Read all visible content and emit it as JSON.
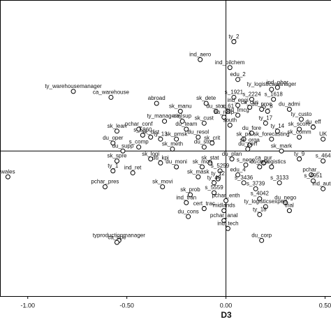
{
  "chart_data": {
    "type": "scatter",
    "x_label": "D3",
    "xlim": [
      -1.14,
      0.53
    ],
    "ylim": [
      -0.73,
      0.76
    ],
    "xticks": [
      {
        "value": -1,
        "label": "-1.00"
      },
      {
        "value": -0.5,
        "label": "-0.50"
      },
      {
        "value": 0,
        "label": "0.00"
      },
      {
        "value": 0.5,
        "label": "0.50"
      }
    ],
    "color": "#000000",
    "points": [
      {
        "label": "ty_2",
        "x": 0.04,
        "y": 0.55
      },
      {
        "label": "ind_aero",
        "x": -0.13,
        "y": 0.46
      },
      {
        "label": "ind_oilchem",
        "x": 0.02,
        "y": 0.42
      },
      {
        "label": "edu_2",
        "x": 0.06,
        "y": 0.36
      },
      {
        "label": "ind_phar",
        "x": 0.26,
        "y": 0.32
      },
      {
        "label": "ty_warehousemanager",
        "x": -0.77,
        "y": 0.3
      },
      {
        "label": "ca_warehouse",
        "x": -0.58,
        "y": 0.27
      },
      {
        "label": "abroad",
        "x": -0.35,
        "y": 0.24
      },
      {
        "label": "s_1921",
        "x": 0.04,
        "y": 0.27
      },
      {
        "label": "s_2224",
        "x": 0.13,
        "y": 0.26
      },
      {
        "label": "s_1618",
        "x": 0.24,
        "y": 0.26
      },
      {
        "label": "ty_logisticsmanager",
        "x": 0.23,
        "y": 0.31
      },
      {
        "label": "sk_dete",
        "x": -0.1,
        "y": 0.24
      },
      {
        "label": "ind_engi",
        "x": 0.06,
        "y": 0.23
      },
      {
        "label": "ca_cus",
        "x": 0.12,
        "y": 0.22
      },
      {
        "label": "du_proc",
        "x": 0.18,
        "y": 0.21
      },
      {
        "label": "du_admi",
        "x": 0.32,
        "y": 0.21
      },
      {
        "label": "ty_custo",
        "x": 0.38,
        "y": 0.16
      },
      {
        "label": "sk_manu",
        "x": -0.23,
        "y": 0.2
      },
      {
        "label": "du_stoc",
        "x": -0.05,
        "y": 0.2
      },
      {
        "label": "s_61",
        "x": 0.01,
        "y": 0.2
      },
      {
        "label": "ind_fmcg",
        "x": 0.06,
        "y": 0.18
      },
      {
        "label": "ty_8",
        "x": 0.21,
        "y": 0.2
      },
      {
        "label": "ty_managerial",
        "x": -0.31,
        "y": 0.15
      },
      {
        "label": "ca_sup",
        "x": -0.22,
        "y": 0.15
      },
      {
        "label": "sk_cust",
        "x": -0.11,
        "y": 0.14
      },
      {
        "label": "du_resp",
        "x": -0.01,
        "y": 0.17
      },
      {
        "label": "south",
        "x": 0.02,
        "y": 0.13
      },
      {
        "label": "ty_17",
        "x": 0.2,
        "y": 0.14
      },
      {
        "label": "ty_14",
        "x": 0.26,
        "y": 0.1
      },
      {
        "label": "sk_score",
        "x": 0.37,
        "y": 0.11
      },
      {
        "label": "pchar_conf",
        "x": -0.44,
        "y": 0.11
      },
      {
        "label": "s_5860",
        "x": -0.42,
        "y": 0.08
      },
      {
        "label": "du_team",
        "x": -0.2,
        "y": 0.11
      },
      {
        "label": "du_fore",
        "x": 0.13,
        "y": 0.09
      },
      {
        "label": "du_eff",
        "x": 0.44,
        "y": 0.12
      },
      {
        "label": "sk_lean",
        "x": -0.55,
        "y": 0.1
      },
      {
        "label": "sk_dist",
        "x": -0.38,
        "y": 0.07
      },
      {
        "label": "ty_13",
        "x": -0.33,
        "y": 0.06
      },
      {
        "label": "sk_pmsk",
        "x": -0.25,
        "y": 0.06
      },
      {
        "label": "du_resol",
        "x": -0.14,
        "y": 0.07
      },
      {
        "label": "sk_po",
        "x": 0.09,
        "y": 0.06
      },
      {
        "label": "sk_forecasting",
        "x": 0.23,
        "y": 0.06
      },
      {
        "label": "sk_comm",
        "x": 0.37,
        "y": 0.07
      },
      {
        "label": "du_oper",
        "x": -0.57,
        "y": 0.04
      },
      {
        "label": "s_comp",
        "x": -0.44,
        "y": 0.02
      },
      {
        "label": "sk_meth",
        "x": -0.27,
        "y": 0.01
      },
      {
        "label": "du_strat",
        "x": -0.11,
        "y": 0.02
      },
      {
        "label": "sk_crit",
        "x": -0.07,
        "y": 0.04
      },
      {
        "label": "sk_orga",
        "x": 0.12,
        "y": 0.03
      },
      {
        "label": "du_perf",
        "x": 0.11,
        "y": 0.01
      },
      {
        "label": "sk_mark",
        "x": 0.28,
        "y": 0.0
      },
      {
        "label": "du_supp",
        "x": -0.52,
        "y": 0.0
      },
      {
        "label": "ty_9",
        "x": 0.37,
        "y": -0.04
      },
      {
        "label": "s_464",
        "x": 0.49,
        "y": -0.05
      },
      {
        "label": "sk_spre",
        "x": -0.55,
        "y": -0.05
      },
      {
        "label": "sk_logi",
        "x": -0.38,
        "y": -0.04
      },
      {
        "label": "du_kpi",
        "x": -0.33,
        "y": -0.06
      },
      {
        "label": "sk_stat",
        "x": -0.08,
        "y": -0.06
      },
      {
        "label": "du_plan",
        "x": 0.03,
        "y": -0.04
      },
      {
        "label": "ca_pur",
        "x": 0.19,
        "y": -0.06
      },
      {
        "label": "ca_logistics",
        "x": 0.23,
        "y": -0.08
      },
      {
        "label": "ty_1",
        "x": -0.57,
        "y": -0.1
      },
      {
        "label": "ind_ret",
        "x": -0.47,
        "y": -0.11
      },
      {
        "label": "du_moni",
        "x": -0.25,
        "y": -0.08
      },
      {
        "label": "sk_moti",
        "x": -0.12,
        "y": -0.08
      },
      {
        "label": "s_5259",
        "x": -0.03,
        "y": -0.1
      },
      {
        "label": "s_nego",
        "x": 0.1,
        "y": -0.07
      },
      {
        "label": "du_rela",
        "x": 0.17,
        "y": -0.08
      },
      {
        "label": "pchar_",
        "x": 0.43,
        "y": -0.12
      },
      {
        "label": "wales",
        "x": -1.1,
        "y": -0.13
      },
      {
        "label": "sk_mask",
        "x": -0.14,
        "y": -0.13
      },
      {
        "label": "s_4951",
        "x": 0.44,
        "y": -0.15
      },
      {
        "label": "ind_auto",
        "x": 0.49,
        "y": -0.19
      },
      {
        "label": "ty_12",
        "x": -0.04,
        "y": -0.14
      },
      {
        "label": "s_3436",
        "x": 0.09,
        "y": -0.16
      },
      {
        "label": "pchar_pres",
        "x": -0.61,
        "y": -0.18
      },
      {
        "label": "sk_movi",
        "x": -0.32,
        "y": -0.18
      },
      {
        "label": "ty_40",
        "x": -0.06,
        "y": -0.16
      },
      {
        "label": "s_3739",
        "x": 0.15,
        "y": -0.19
      },
      {
        "label": "s_3133",
        "x": 0.27,
        "y": -0.16
      },
      {
        "label": "sk_prob",
        "x": -0.18,
        "y": -0.22
      },
      {
        "label": "s_5559",
        "x": -0.06,
        "y": -0.21
      },
      {
        "label": "edu_4",
        "x": 0.06,
        "y": -0.12
      },
      {
        "label": "ind_tran",
        "x": -0.2,
        "y": -0.26
      },
      {
        "label": "pchar_enth",
        "x": 0.0,
        "y": -0.25
      },
      {
        "label": "s_4042",
        "x": 0.17,
        "y": -0.24
      },
      {
        "label": "du_nego",
        "x": 0.3,
        "y": -0.26
      },
      {
        "label": "cert_trac",
        "x": -0.11,
        "y": -0.29
      },
      {
        "label": "ty_logisticsexpert",
        "x": 0.2,
        "y": -0.28
      },
      {
        "label": "du_cons",
        "x": -0.19,
        "y": -0.33
      },
      {
        "label": "midlands",
        "x": -0.01,
        "y": -0.3
      },
      {
        "label": "trial",
        "x": 0.32,
        "y": -0.3
      },
      {
        "label": "pchar_anal",
        "x": -0.01,
        "y": -0.35
      },
      {
        "label": "ty_18",
        "x": 0.17,
        "y": -0.32
      },
      {
        "label": "ind_tech",
        "x": 0.01,
        "y": -0.39
      },
      {
        "label": "typroductionmanager",
        "x": -0.54,
        "y": -0.45
      },
      {
        "label": "ca_ope",
        "x": -0.55,
        "y": -0.46
      },
      {
        "label": "du_corp",
        "x": 0.18,
        "y": -0.45
      },
      {
        "label": "UK",
        "x": 0.49,
        "y": 0.06
      }
    ]
  }
}
